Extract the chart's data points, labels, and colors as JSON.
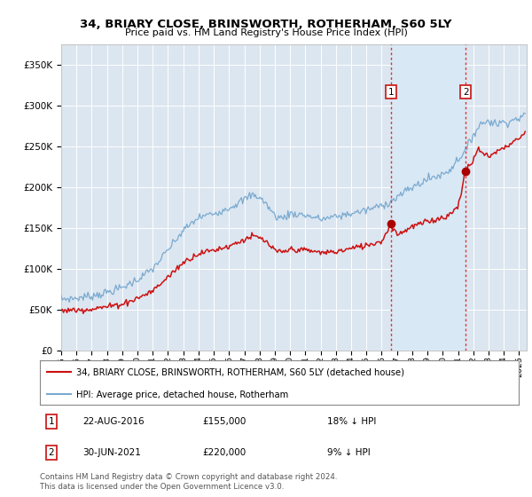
{
  "title": "34, BRIARY CLOSE, BRINSWORTH, ROTHERHAM, S60 5LY",
  "subtitle": "Price paid vs. HM Land Registry's House Price Index (HPI)",
  "background_color": "#ffffff",
  "plot_bg_color": "#dce6f0",
  "grid_color": "#ffffff",
  "sale1_price": 155000,
  "sale1_label": "22-AUG-2016",
  "sale1_pct": "18% ↓ HPI",
  "sale1_year": 2016.622,
  "sale2_price": 220000,
  "sale2_label": "30-JUN-2021",
  "sale2_pct": "9% ↓ HPI",
  "sale2_year": 2021.497,
  "legend1": "34, BRIARY CLOSE, BRINSWORTH, ROTHERHAM, S60 5LY (detached house)",
  "legend2": "HPI: Average price, detached house, Rotherham",
  "footnote": "Contains HM Land Registry data © Crown copyright and database right 2024.\nThis data is licensed under the Open Government Licence v3.0.",
  "hpi_color": "#7aaad0",
  "price_color": "#cc1111",
  "shade_color": "#d8e8f5",
  "dot_color": "#aa0000",
  "ylim_min": 0,
  "ylim_max": 375000,
  "xstart": 1995.0,
  "xend": 2025.5
}
